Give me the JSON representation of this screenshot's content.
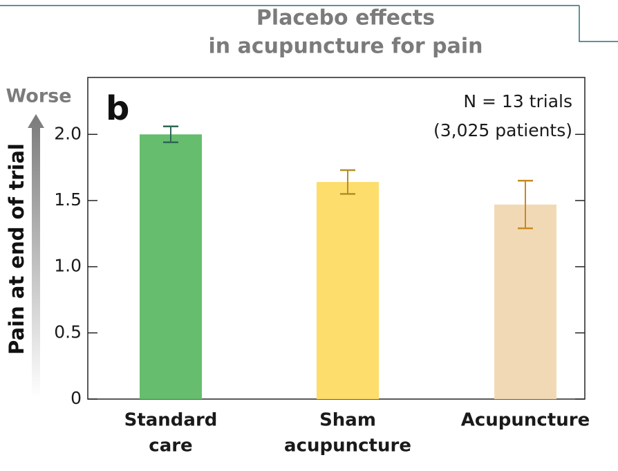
{
  "chart_data": {
    "type": "bar",
    "title": [
      "Placebo effects",
      "in acupuncture for pain"
    ],
    "panel_label": "b",
    "annotations": [
      "N = 13 trials",
      "(3,025 patients)"
    ],
    "y_label": "Pain at end of trial",
    "y_direction_label": "Worse",
    "categories": [
      [
        "Standard",
        "care"
      ],
      [
        "Sham",
        "acupuncture"
      ],
      [
        "Acupuncture"
      ]
    ],
    "values": [
      2.0,
      1.64,
      1.47
    ],
    "errors": [
      0.06,
      0.09,
      0.18
    ],
    "colors": [
      "#66bd6d",
      "#fddd6b",
      "#f2d9b6"
    ],
    "error_colors": [
      "#2e6655",
      "#b38d2a",
      "#c78a20"
    ],
    "ylim": [
      0,
      2.43
    ],
    "yticks": [
      0,
      0.5,
      {
        "value": 1,
        "label": "1.0"
      },
      1.5,
      {
        "value": 2,
        "label": "2.0"
      }
    ],
    "grid": false
  }
}
